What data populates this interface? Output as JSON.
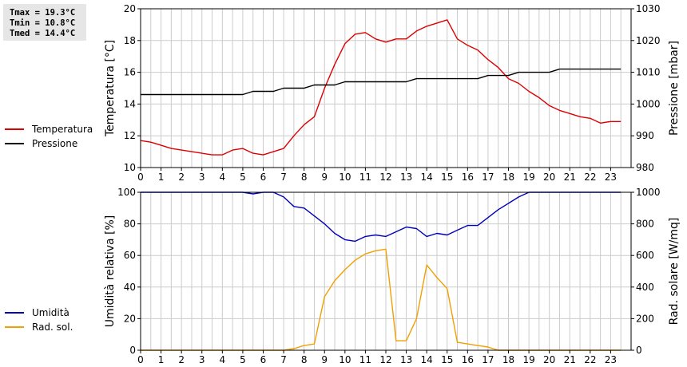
{
  "stats": {
    "tmax": "Tmax = 19.3°C",
    "tmin": "Tmin = 10.8°C",
    "tmed": "Tmed = 14.4°C"
  },
  "legend_top": [
    {
      "label": "Temperatura",
      "color": "#dd0000"
    },
    {
      "label": "Pressione",
      "color": "#000000"
    }
  ],
  "legend_bottom": [
    {
      "label": "Umidità",
      "color": "#0000bb"
    },
    {
      "label": "Rad. sol.",
      "color": "#f0a000"
    }
  ],
  "chart_data": [
    {
      "type": "line",
      "xlabel": "",
      "x_ticks": [
        "0",
        "1",
        "2",
        "3",
        "4",
        "5",
        "6",
        "7",
        "8",
        "9",
        "10",
        "11",
        "12",
        "13",
        "14",
        "15",
        "16",
        "17",
        "18",
        "19",
        "20",
        "21",
        "22",
        "23"
      ],
      "xlim": [
        0,
        24
      ],
      "ylabel_left": "Temperatura [°C]",
      "ylim_left": [
        10,
        20
      ],
      "yticks_left": [
        "10",
        "12",
        "14",
        "16",
        "18",
        "20"
      ],
      "ylabel_right": "Pressione [mbar]",
      "ylim_right": [
        980,
        1030
      ],
      "yticks_right": [
        "980",
        "990",
        "1000",
        "1010",
        "1020",
        "1030"
      ],
      "grid": true,
      "series": [
        {
          "name": "Temperatura",
          "axis": "left",
          "color": "#dd0000",
          "x": [
            0,
            0.5,
            1,
            1.5,
            2,
            2.5,
            3,
            3.5,
            4,
            4.5,
            5,
            5.5,
            6,
            6.5,
            7,
            7.5,
            8,
            8.5,
            9,
            9.5,
            10,
            10.5,
            11,
            11.5,
            12,
            12.5,
            13,
            13.5,
            14,
            14.5,
            15,
            15.5,
            16,
            16.5,
            17,
            17.5,
            18,
            18.5,
            19,
            19.5,
            20,
            20.5,
            21,
            21.5,
            22,
            22.5,
            23,
            23.5
          ],
          "y": [
            11.7,
            11.6,
            11.4,
            11.2,
            11.1,
            11.0,
            10.9,
            10.8,
            10.8,
            11.1,
            11.2,
            10.9,
            10.8,
            11.0,
            11.2,
            12.0,
            12.7,
            13.2,
            15.0,
            16.5,
            17.8,
            18.4,
            18.5,
            18.1,
            17.9,
            18.1,
            18.1,
            18.6,
            18.9,
            19.1,
            19.3,
            18.1,
            17.7,
            17.4,
            16.8,
            16.3,
            15.6,
            15.3,
            14.8,
            14.4,
            13.9,
            13.6,
            13.4,
            13.2,
            13.1,
            12.8,
            12.9,
            12.9
          ]
        },
        {
          "name": "Pressione",
          "axis": "right",
          "color": "#000000",
          "x": [
            0,
            5,
            5.5,
            6.5,
            7,
            8,
            8.5,
            9.5,
            10,
            13,
            13.5,
            16.5,
            17,
            18,
            18.5,
            20,
            20.5,
            23.5
          ],
          "y": [
            1003,
            1003,
            1004,
            1004,
            1005,
            1005,
            1006,
            1006,
            1007,
            1007,
            1008,
            1008,
            1009,
            1009,
            1010,
            1010,
            1011,
            1011
          ]
        }
      ]
    },
    {
      "type": "line",
      "xlabel": "",
      "x_ticks": [
        "0",
        "1",
        "2",
        "3",
        "4",
        "5",
        "6",
        "7",
        "8",
        "9",
        "10",
        "11",
        "12",
        "13",
        "14",
        "15",
        "16",
        "17",
        "18",
        "19",
        "20",
        "21",
        "22",
        "23"
      ],
      "xlim": [
        0,
        24
      ],
      "ylabel_left": "Umidità relativa [%]",
      "ylim_left": [
        0,
        100
      ],
      "yticks_left": [
        "0",
        "20",
        "40",
        "60",
        "80",
        "100"
      ],
      "ylabel_right": "Rad. solare [W/mq]",
      "ylim_right": [
        0,
        1000
      ],
      "yticks_right": [
        "0",
        "200",
        "400",
        "600",
        "800",
        "1000"
      ],
      "grid": true,
      "series": [
        {
          "name": "Umidità",
          "axis": "left",
          "color": "#0000bb",
          "x": [
            0,
            5,
            5.5,
            6,
            6.5,
            7,
            7.5,
            8,
            8.5,
            9,
            9.5,
            10,
            10.5,
            11,
            11.5,
            12,
            12.5,
            13,
            13.5,
            14,
            14.5,
            15,
            15.5,
            16,
            16.5,
            17,
            17.5,
            18,
            18.5,
            19,
            19.5,
            23.5
          ],
          "y": [
            100,
            100,
            99,
            100,
            100,
            97,
            91,
            90,
            85,
            80,
            74,
            70,
            69,
            72,
            73,
            72,
            75,
            78,
            77,
            72,
            74,
            73,
            76,
            79,
            79,
            84,
            89,
            93,
            97,
            100,
            100,
            100
          ]
        },
        {
          "name": "Rad. sol.",
          "axis": "right",
          "color": "#f0a000",
          "x": [
            0,
            7,
            7.5,
            8,
            8.5,
            9,
            9.5,
            10,
            10.5,
            11,
            11.5,
            12,
            12.5,
            13,
            13.5,
            14,
            14.5,
            15,
            15.5,
            16,
            16.5,
            17,
            17.5,
            23.5
          ],
          "y": [
            0,
            0,
            10,
            30,
            40,
            340,
            440,
            510,
            570,
            610,
            630,
            640,
            60,
            60,
            200,
            540,
            460,
            390,
            50,
            40,
            30,
            20,
            0,
            0
          ]
        }
      ]
    }
  ]
}
